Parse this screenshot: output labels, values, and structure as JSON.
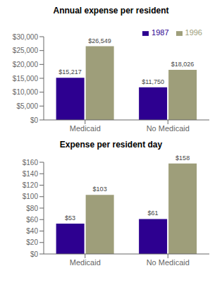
{
  "chart_data": [
    {
      "type": "bar",
      "title": "Annual expense per resident",
      "categories": [
        "Medicaid",
        "No Medicaid"
      ],
      "series": [
        {
          "name": "1987",
          "color": "#2d0090",
          "values": [
            15217,
            11750
          ],
          "value_labels": [
            "$15,217",
            "$11,750"
          ]
        },
        {
          "name": "1996",
          "color": "#9e9e7a",
          "values": [
            26549,
            18026
          ],
          "value_labels": [
            "$26,549",
            "$18,026"
          ]
        }
      ],
      "ylim": [
        0,
        30000
      ],
      "yticks": [
        {
          "value": 0,
          "label": "$0"
        },
        {
          "value": 5000,
          "label": "$5,000"
        },
        {
          "value": 10000,
          "label": "$10,000"
        },
        {
          "value": 15000,
          "label": "$15,000"
        },
        {
          "value": 20000,
          "label": "$20,000"
        },
        {
          "value": 25000,
          "label": "$25,000"
        },
        {
          "value": 30000,
          "label": "$30,000"
        }
      ],
      "data_labels": true,
      "legend": "upper right"
    },
    {
      "type": "bar",
      "title": "Expense per resident day",
      "categories": [
        "Medicaid",
        "No Medicaid"
      ],
      "series": [
        {
          "name": "1987",
          "color": "#2d0090",
          "values": [
            53,
            61
          ],
          "value_labels": [
            "$53",
            "$61"
          ]
        },
        {
          "name": "1996",
          "color": "#9e9e7a",
          "values": [
            103,
            158
          ],
          "value_labels": [
            "$103",
            "$158"
          ]
        }
      ],
      "ylim": [
        0,
        160
      ],
      "yticks": [
        {
          "value": 0,
          "label": "$0"
        },
        {
          "value": 20,
          "label": "$20"
        },
        {
          "value": 40,
          "label": "$40"
        },
        {
          "value": 60,
          "label": "$60"
        },
        {
          "value": 80,
          "label": "$80"
        },
        {
          "value": 100,
          "label": "$100"
        },
        {
          "value": 120,
          "label": "$120"
        },
        {
          "value": 140,
          "label": "$140"
        },
        {
          "value": 160,
          "label": "$160"
        }
      ],
      "data_labels": true
    }
  ]
}
